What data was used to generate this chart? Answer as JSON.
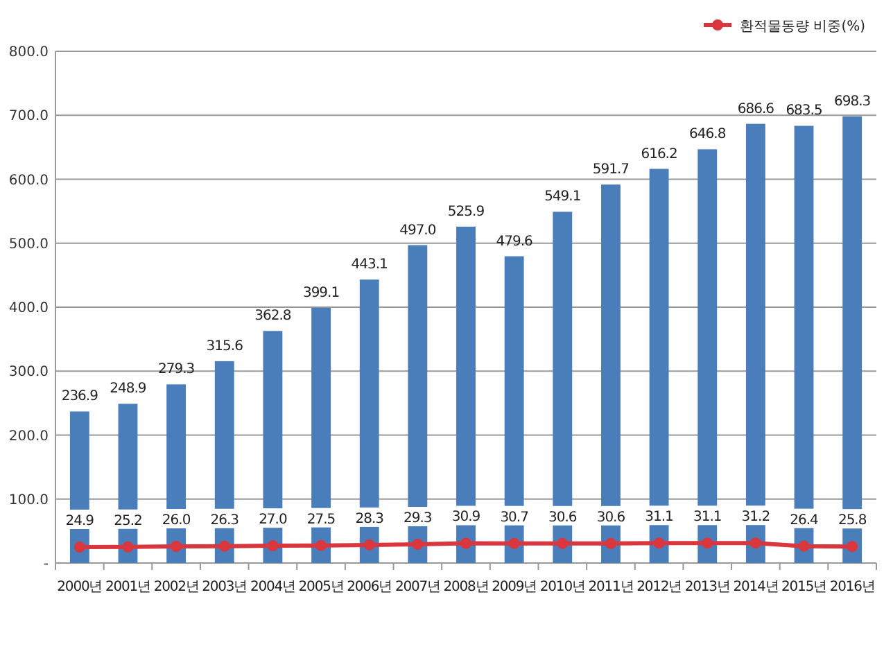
{
  "chart_data": {
    "type": "bar",
    "categories": [
      "2000년",
      "2001년",
      "2002년",
      "2003년",
      "2004년",
      "2005년",
      "2006년",
      "2007년",
      "2008년",
      "2009년",
      "2010년",
      "2011년",
      "2012년",
      "2013년",
      "2014년",
      "2015년",
      "2016년"
    ],
    "series": [
      {
        "color": "#4a7ebb",
        "values": [
          236.9,
          248.9,
          279.3,
          315.6,
          362.8,
          399.1,
          443.1,
          497.0,
          525.9,
          479.6,
          549.1,
          591.7,
          616.2,
          646.8,
          686.6,
          683.5,
          698.3
        ],
        "value_labels": [
          "236.9",
          "248.9",
          "279.3",
          "315.6",
          "362.8",
          "399.1",
          "443.1",
          "497.0",
          "525.9",
          "479.6",
          "549.1",
          "591.7",
          "616.2",
          "646.8",
          "686.6",
          "683.5",
          "698.3"
        ]
      },
      {
        "type": "line",
        "name": "환적물동량 비중(%)",
        "color": "#d9363e",
        "values": [
          24.9,
          25.2,
          26.0,
          26.3,
          27.0,
          27.5,
          28.3,
          29.3,
          30.9,
          30.7,
          30.6,
          30.6,
          31.1,
          31.1,
          31.2,
          26.4,
          25.8
        ],
        "value_labels": [
          "24.9",
          "25.2",
          "26.0",
          "26.3",
          "27.0",
          "27.5",
          "28.3",
          "29.3",
          "30.9",
          "30.7",
          "30.6",
          "30.6",
          "31.1",
          "31.1",
          "31.2",
          "26.4",
          "25.8"
        ]
      }
    ],
    "ylim": [
      0,
      800
    ],
    "yticks": [
      {
        "value": 0,
        "label": "-"
      },
      {
        "value": 100,
        "label": "100.0"
      },
      {
        "value": 200,
        "label": "200.0"
      },
      {
        "value": 300,
        "label": "300.0"
      },
      {
        "value": 400,
        "label": "400.0"
      },
      {
        "value": 500,
        "label": "500.0"
      },
      {
        "value": 600,
        "label": "600.0"
      },
      {
        "value": 700,
        "label": "700.0"
      },
      {
        "value": 800,
        "label": "800.0"
      }
    ],
    "grid": "y",
    "legend": "top right",
    "marker": "circle"
  }
}
